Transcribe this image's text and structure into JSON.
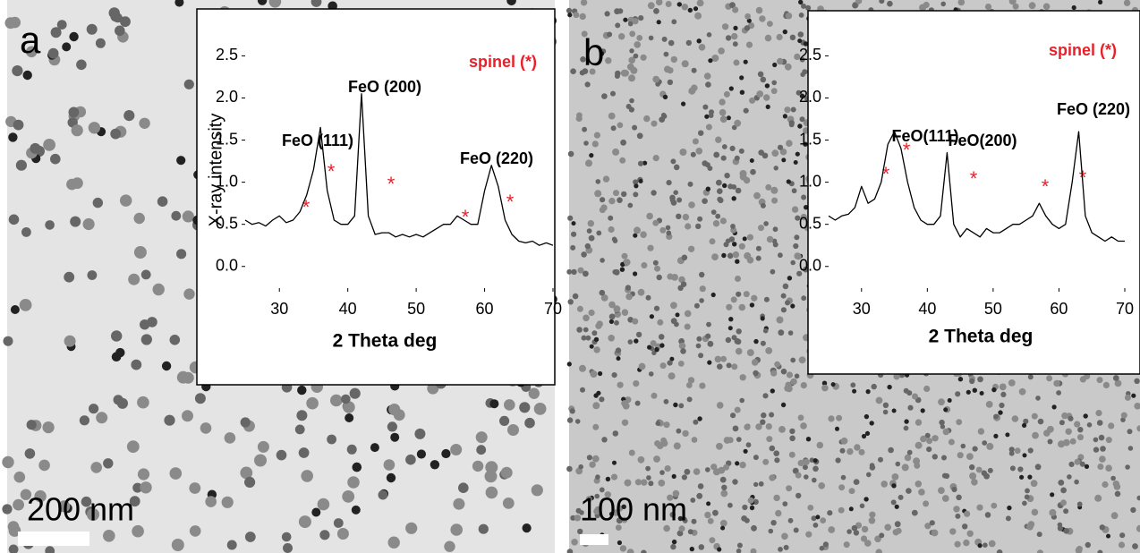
{
  "panels": [
    {
      "label": "a",
      "scale_bar": "200 nm"
    },
    {
      "label": "b",
      "scale_bar": "100 nm"
    }
  ],
  "chart_data": [
    {
      "type": "line",
      "xlabel": "2 Theta deg",
      "ylabel": "X-ray intensity",
      "note": "spinel (*)",
      "annotations": [
        "FeO (111)",
        "FeO (200)",
        "FeO (220)",
        "*",
        "*",
        "*",
        "*",
        "*"
      ],
      "xlim": [
        25,
        70
      ],
      "xticks": [
        30,
        40,
        50,
        60,
        70
      ],
      "ylim": [
        -0.3,
        2.6
      ],
      "yticks": [
        {
          "value": 0,
          "label": "0.0"
        },
        0.5,
        {
          "value": 1,
          "label": "1.0"
        },
        1.5,
        {
          "value": 2,
          "label": "2.0"
        },
        2.5
      ],
      "x": [
        25,
        26,
        27,
        28,
        29,
        30,
        31,
        32,
        33,
        34,
        35,
        36,
        37,
        38,
        39,
        40,
        41,
        42,
        43,
        44,
        45,
        46,
        47,
        48,
        49,
        50,
        51,
        52,
        53,
        54,
        55,
        56,
        57,
        58,
        59,
        60,
        61,
        62,
        63,
        64,
        65,
        66,
        67,
        68,
        69,
        70
      ],
      "series": [
        {
          "color": "#000000",
          "values": [
            0.55,
            0.5,
            0.52,
            0.48,
            0.55,
            0.6,
            0.52,
            0.55,
            0.65,
            0.85,
            1.15,
            1.65,
            0.9,
            0.55,
            0.5,
            0.5,
            0.6,
            2.05,
            0.6,
            0.38,
            0.4,
            0.4,
            0.35,
            0.38,
            0.35,
            0.38,
            0.35,
            0.4,
            0.45,
            0.5,
            0.5,
            0.6,
            0.55,
            0.5,
            0.5,
            0.9,
            1.2,
            0.95,
            0.55,
            0.38,
            0.3,
            0.28,
            0.3,
            0.25,
            0.28,
            0.25
          ]
        }
      ]
    },
    {
      "type": "line",
      "xlabel": "2 Theta deg",
      "note": "spinel (*)",
      "annotations": [
        "FeO(111)",
        "FeO(200)",
        "FeO (220)",
        "*",
        "*",
        "*",
        "*",
        "*"
      ],
      "xlim": [
        25,
        70
      ],
      "xticks": [
        30,
        40,
        50,
        60,
        70
      ],
      "ylim": [
        -0.3,
        2.6
      ],
      "yticks": [
        {
          "value": 0,
          "label": "0.0"
        },
        0.5,
        {
          "value": 1,
          "label": "1.0"
        },
        1.5,
        {
          "value": 2,
          "label": "2.0"
        },
        2.5
      ],
      "x": [
        25,
        26,
        27,
        28,
        29,
        30,
        31,
        32,
        33,
        34,
        35,
        36,
        37,
        38,
        39,
        40,
        41,
        42,
        43,
        44,
        45,
        46,
        47,
        48,
        49,
        50,
        51,
        52,
        53,
        54,
        55,
        56,
        57,
        58,
        59,
        60,
        61,
        62,
        63,
        64,
        65,
        66,
        67,
        68,
        69,
        70
      ],
      "series": [
        {
          "color": "#000000",
          "values": [
            0.6,
            0.55,
            0.6,
            0.62,
            0.7,
            0.95,
            0.75,
            0.8,
            1.0,
            1.45,
            1.6,
            1.4,
            1.0,
            0.7,
            0.55,
            0.5,
            0.5,
            0.6,
            1.35,
            0.5,
            0.35,
            0.45,
            0.4,
            0.35,
            0.45,
            0.4,
            0.4,
            0.45,
            0.5,
            0.5,
            0.55,
            0.6,
            0.75,
            0.6,
            0.5,
            0.45,
            0.5,
            1.0,
            1.6,
            0.6,
            0.4,
            0.35,
            0.3,
            0.35,
            0.3,
            0.3
          ]
        }
      ]
    }
  ]
}
